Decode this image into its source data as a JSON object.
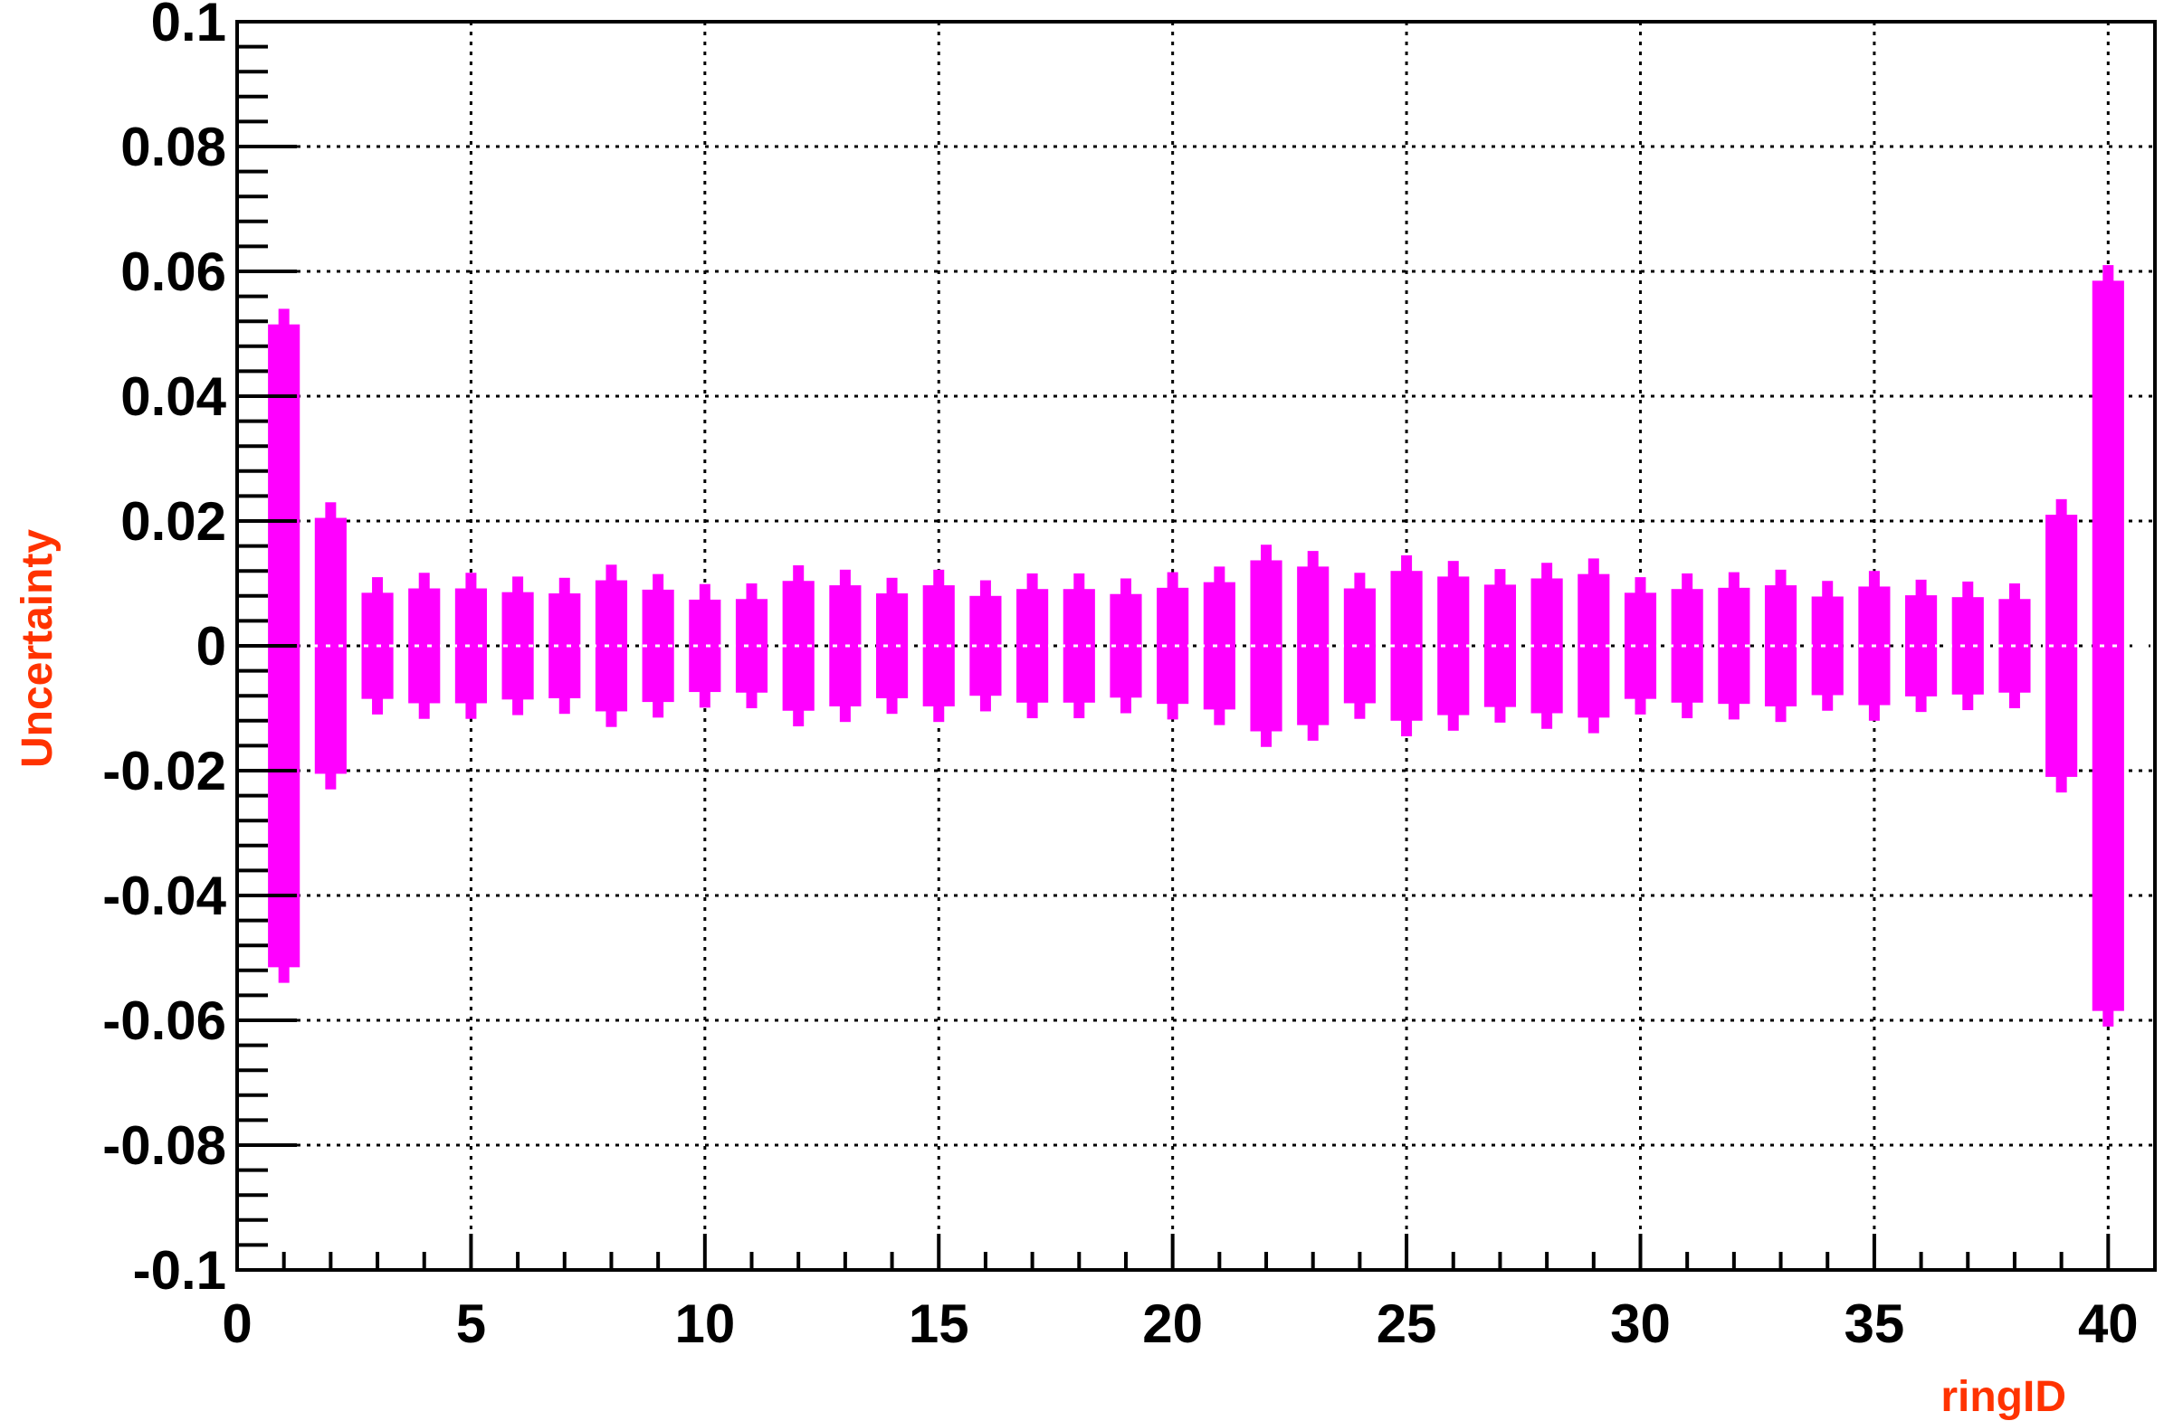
{
  "chart_data": {
    "type": "bar",
    "title": "",
    "xlabel": "ringID",
    "ylabel": "Uncertainty",
    "xlim": [
      0,
      41
    ],
    "ylim": [
      -0.1,
      0.1
    ],
    "x_major_ticks": [
      0,
      5,
      10,
      15,
      20,
      25,
      30,
      35,
      40
    ],
    "x_tick_labels": [
      "0",
      "5",
      "10",
      "15",
      "20",
      "25",
      "30",
      "35",
      "40"
    ],
    "y_major_ticks": [
      0.1,
      0.08,
      0.06,
      0.04,
      0.02,
      0,
      -0.02,
      -0.04,
      -0.06,
      -0.08,
      -0.1
    ],
    "y_tick_labels": [
      "0.1",
      "0.08",
      "0.06",
      "0.04",
      "0.02",
      "0",
      "-0.02",
      "-0.04",
      "-0.06",
      "-0.08",
      "-0.1"
    ],
    "grid": true,
    "grid_style": "dotted",
    "axis_title_color": "#ff3300",
    "bar_color": "#ff00ff",
    "series": [
      {
        "x": [
          1,
          2,
          3,
          4,
          5,
          6,
          7,
          8,
          9,
          10,
          11,
          12,
          13,
          14,
          15,
          16,
          17,
          18,
          19,
          20,
          21,
          22,
          23,
          24,
          25,
          26,
          27,
          28,
          29,
          30,
          31,
          32,
          33,
          34,
          35,
          36,
          37,
          38,
          39,
          40
        ],
        "inner": [
          0.0515,
          0.0205,
          0.0085,
          0.0092,
          0.0092,
          0.0086,
          0.0084,
          0.0105,
          0.009,
          0.0074,
          0.0075,
          0.0104,
          0.0097,
          0.0084,
          0.0097,
          0.008,
          0.0091,
          0.0091,
          0.0083,
          0.0093,
          0.0102,
          0.0137,
          0.0127,
          0.0092,
          0.012,
          0.0111,
          0.0098,
          0.0108,
          0.0115,
          0.0085,
          0.0091,
          0.0093,
          0.0097,
          0.0079,
          0.0095,
          0.0081,
          0.0078,
          0.0075,
          0.021,
          0.0585
        ],
        "outer": [
          0.054,
          0.023,
          0.011,
          0.0117,
          0.0117,
          0.0111,
          0.0109,
          0.013,
          0.0115,
          0.0099,
          0.01,
          0.0129,
          0.0122,
          0.0109,
          0.0122,
          0.0105,
          0.0116,
          0.0116,
          0.0108,
          0.0118,
          0.0127,
          0.0162,
          0.0152,
          0.0117,
          0.0145,
          0.0136,
          0.0123,
          0.0133,
          0.014,
          0.011,
          0.0116,
          0.0118,
          0.0122,
          0.0104,
          0.012,
          0.0106,
          0.0103,
          0.01,
          0.0235,
          0.061
        ]
      }
    ]
  }
}
